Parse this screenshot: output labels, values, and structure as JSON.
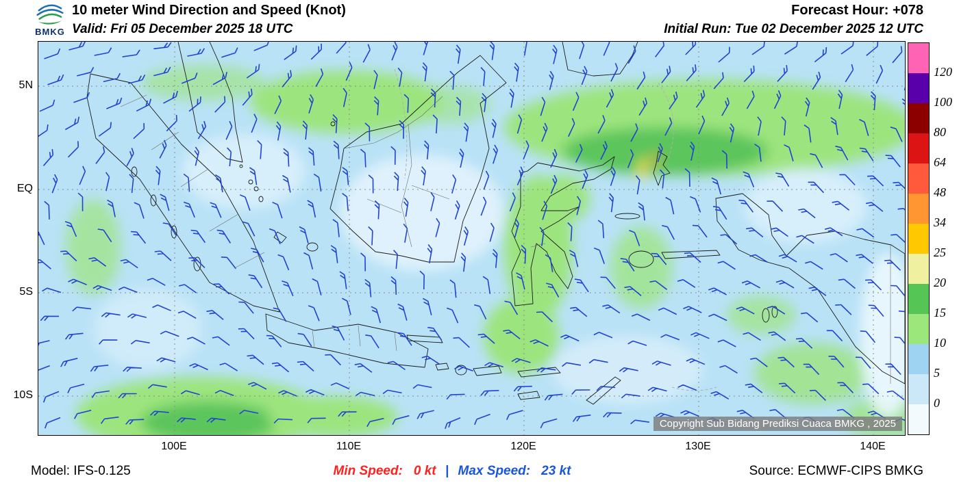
{
  "header": {
    "logo_text": "BMKG",
    "title": "10 meter Wind Direction and Speed (Knot)",
    "valid_line": "Valid: Fri 05 December 2025 18 UTC",
    "forecast_hour": "Forecast Hour: +078",
    "initial_run": "Initial Run: Tue 02 December 2025 12 UTC"
  },
  "map": {
    "lat_labels": [
      "5N",
      "EQ",
      "5S",
      "10S"
    ],
    "lon_labels": [
      "100E",
      "110E",
      "120E",
      "130E",
      "140E"
    ],
    "copyright": "Copyright Sub Bidang Prediksi Cuaca BMKG , 2025"
  },
  "colorbar": {
    "unit": "Knot",
    "tick_labels": [
      "0",
      "5",
      "10",
      "15",
      "20",
      "25",
      "34",
      "48",
      "64",
      "80",
      "100",
      "120"
    ],
    "band_colors_bottom_to_top": [
      "#F2FAFE",
      "#CBE8F9",
      "#9ED4F2",
      "#9BE77B",
      "#55C556",
      "#EFF0A0",
      "#FFC800",
      "#FF9632",
      "#FF5A3C",
      "#DC1414",
      "#8C0000",
      "#5A00AA",
      "#FF64B4"
    ]
  },
  "footer": {
    "model": "Model: IFS-0.125",
    "min_speed_label": "Min Speed:",
    "min_speed_value": "0 kt",
    "separator": "|",
    "max_speed_label": "Max Speed:",
    "max_speed_value": "23 kt",
    "source": "Source: ECMWF-CIPS BMKG"
  },
  "colors": {
    "wind_barb": "#2143D1",
    "sea_base": "#B9E2F6",
    "min_speed_text": "#FF2020",
    "max_speed_text": "#1A56DB"
  }
}
